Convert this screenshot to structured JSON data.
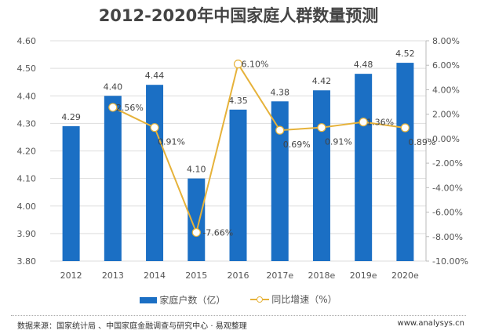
{
  "chart_data": {
    "type": "bar+line",
    "title": "2012-2020年中国家庭人群数量预测",
    "categories": [
      "2012",
      "2013",
      "2014",
      "2015",
      "2016",
      "2017e",
      "2018e",
      "2019e",
      "2020e"
    ],
    "series": [
      {
        "name": "家庭户数（亿）",
        "type": "bar",
        "axis": "left",
        "color": "#1b6fc4",
        "values": [
          4.29,
          4.4,
          4.44,
          4.1,
          4.35,
          4.38,
          4.42,
          4.48,
          4.52
        ],
        "labels": [
          "4.29",
          "4.40",
          "4.44",
          "4.10",
          "4.35",
          "4.38",
          "4.42",
          "4.48",
          "4.52"
        ]
      },
      {
        "name": "同比增速（%）",
        "type": "line",
        "axis": "right",
        "color": "#e6b23a",
        "values": [
          null,
          2.56,
          0.91,
          -7.66,
          6.1,
          0.69,
          0.91,
          1.36,
          0.89
        ],
        "labels": [
          "",
          "2.56%",
          "0.91%",
          "-7.66%",
          "6.10%",
          "0.69%",
          "0.91%",
          "1.36%",
          "0.89%"
        ]
      }
    ],
    "y_left": {
      "range": [
        3.8,
        4.6
      ],
      "ticks": [
        "3.80",
        "3.90",
        "4.00",
        "4.10",
        "4.20",
        "4.30",
        "4.40",
        "4.50",
        "4.60"
      ]
    },
    "y_right": {
      "range": [
        -10,
        8
      ],
      "ticks": [
        "-10.00%",
        "-8.00%",
        "-6.00%",
        "-4.00%",
        "-2.00%",
        "0.00%",
        "2.00%",
        "4.00%",
        "6.00%",
        "8.00%"
      ]
    },
    "grid": true,
    "legend": "bottom"
  },
  "footer": {
    "source": "数据来源：国家统计局 、中国家庭金融调查与研究中心 · 易观整理",
    "site": "www.analysys.cn"
  }
}
